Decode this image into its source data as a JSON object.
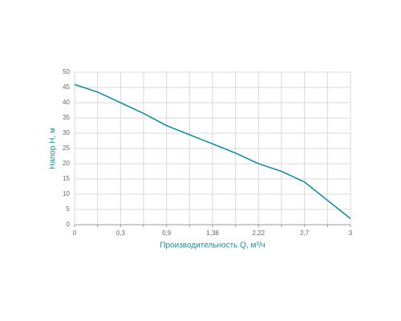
{
  "chart_data": {
    "type": "line",
    "xlabel": "Производительность Q, м³/ч",
    "ylabel": "Напор Н, м",
    "categories": [
      "0",
      null,
      "0,3",
      null,
      "0,9",
      null,
      "1,38",
      null,
      "2,22",
      null,
      "2,7",
      null,
      "3"
    ],
    "series": [
      {
        "color": "#1a8c9c",
        "values": [
          46,
          43.5,
          40,
          36.5,
          32.5,
          29.5,
          26.5,
          23.5,
          20,
          17.5,
          14,
          8,
          2
        ]
      }
    ],
    "ylim": [
      0,
      50
    ],
    "yticks": [
      0,
      5,
      10,
      15,
      20,
      25,
      30,
      35,
      40,
      45,
      50
    ],
    "grid": true
  }
}
